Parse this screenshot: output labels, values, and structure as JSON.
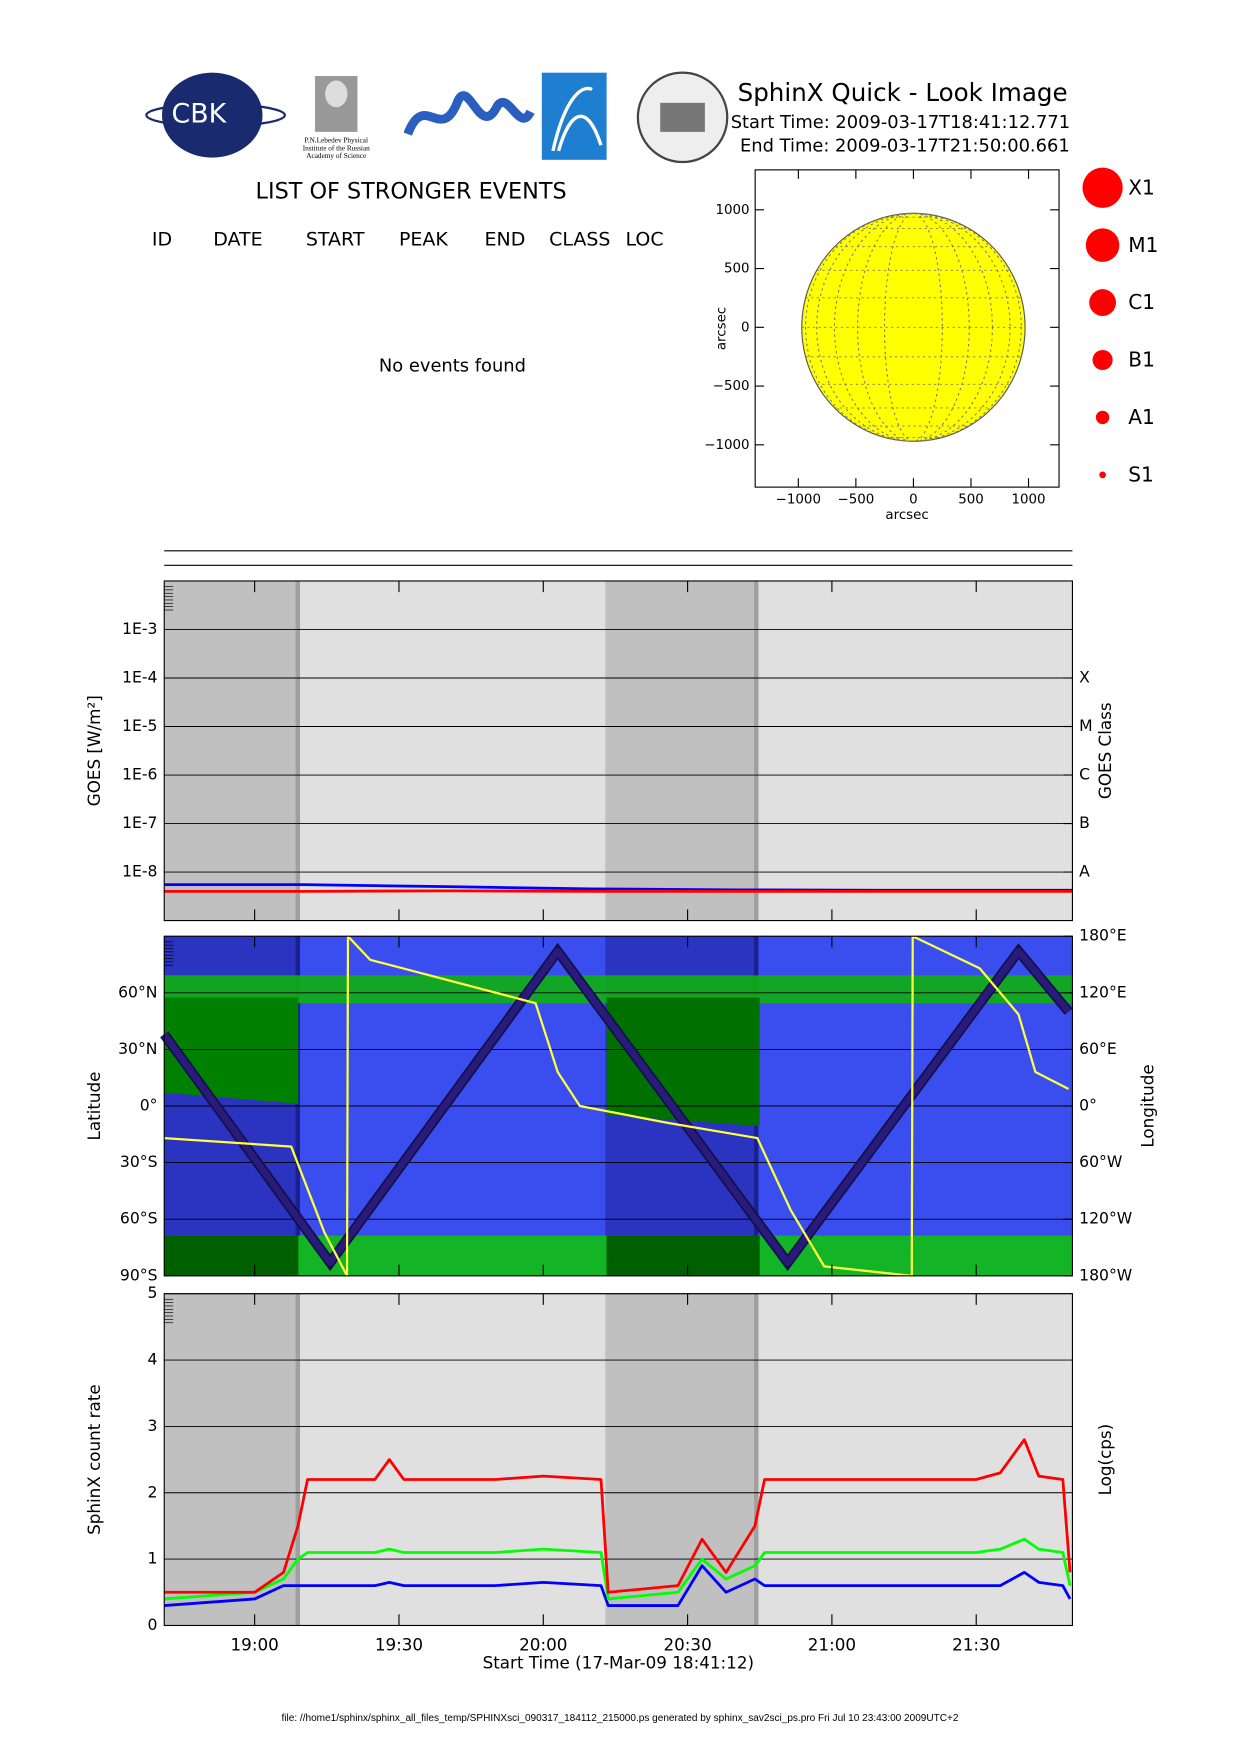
{
  "header": {
    "title": "SphinX Quick - Look Image",
    "start_time": "Start Time: 2009-03-17T18:41:12.771",
    "end_time": "End Time: 2009-03-17T21:50:00.661",
    "logo_text": "CBK",
    "logo_caption": [
      "P.N.Lebedev Physical",
      "Institute of the Russian",
      "Academy of Science"
    ]
  },
  "events": {
    "title": "LIST OF STRONGER EVENTS",
    "columns": [
      "ID",
      "DATE",
      "START",
      "PEAK",
      "END",
      "CLASS",
      "LOC"
    ],
    "message": "No events found"
  },
  "flare_legend": {
    "classes": [
      "X1",
      "M1",
      "C1",
      "B1",
      "A1",
      "S1"
    ],
    "color": "#ff0000"
  },
  "chart_data": [
    {
      "type": "disk",
      "xlabel": "arcsec",
      "ylabel": "arcsec",
      "xlim": [
        -1375,
        1265
      ],
      "ylim": [
        -1360,
        1340
      ],
      "xticks": [
        {
          "value": -1000,
          "label": "−1000"
        },
        {
          "value": -500,
          "label": "−500"
        },
        0,
        500,
        1000
      ],
      "yticks": [
        {
          "value": -1000,
          "label": "−1000"
        },
        {
          "value": -500,
          "label": "−500"
        },
        0,
        500,
        1000
      ],
      "disk_radius": 970,
      "color": "#ffff00"
    },
    {
      "type": "line",
      "ylabel": "GOES [W/m²]",
      "y2label": "GOES Class",
      "log": true,
      "grid": true,
      "xlim": [
        1121.2,
        1310
      ],
      "xticks": [
        1140,
        1170,
        1200,
        1230,
        1260,
        1290
      ],
      "ylim": [
        1e-09,
        0.01
      ],
      "yticks": [
        {
          "value": 0.001,
          "label": "1E-3"
        },
        {
          "value": 0.0001,
          "label": "1E-4"
        },
        {
          "value": 1e-05,
          "label": "1E-5"
        },
        {
          "value": 1e-06,
          "label": "1E-6"
        },
        {
          "value": 1e-07,
          "label": "1E-7"
        },
        {
          "value": 1e-08,
          "label": "1E-8"
        }
      ],
      "y2lim": [
        1e-09,
        0.01
      ],
      "y2ticks": [
        {
          "value": 0.0001,
          "label": "X"
        },
        {
          "value": 1e-05,
          "label": "M"
        },
        {
          "value": 1e-06,
          "label": "C"
        },
        {
          "value": 1e-07,
          "label": "B"
        },
        {
          "value": 1e-08,
          "label": "A"
        }
      ],
      "shaded": [
        [
          1121.2,
          1149.2
        ],
        [
          1212.9,
          1244.5
        ]
      ],
      "x": [
        1121.2,
        1150,
        1180,
        1210,
        1240,
        1270,
        1310
      ],
      "series": [
        {
          "color": "#0000ff",
          "values": [
            5.5e-09,
            5.5e-09,
            5e-09,
            4.5e-09,
            4.3e-09,
            4.2e-09,
            4.2e-09
          ]
        },
        {
          "color": "#ff0000",
          "values": [
            4e-09,
            4e-09,
            4.1e-09,
            4e-09,
            4e-09,
            4e-09,
            4e-09
          ]
        }
      ]
    },
    {
      "type": "line",
      "ylabel": "Latitude",
      "y2label": "Longitude",
      "grid": true,
      "xlim": [
        1121.2,
        1310
      ],
      "xticks": [
        1140,
        1170,
        1200,
        1230,
        1260,
        1290
      ],
      "ylim": [
        -90,
        90
      ],
      "yticks": [
        {
          "value": -90,
          "label": "90°S"
        },
        {
          "value": -60,
          "label": "60°S"
        },
        {
          "value": -30,
          "label": "30°S"
        },
        {
          "value": 0,
          "label": "0°"
        },
        {
          "value": 30,
          "label": "30°N"
        },
        {
          "value": 60,
          "label": "60°N"
        }
      ],
      "y2lim": [
        -180,
        180
      ],
      "y2ticks": [
        {
          "value": -180,
          "label": "180°W"
        },
        {
          "value": -120,
          "label": "120°W"
        },
        {
          "value": -60,
          "label": "60°W"
        },
        {
          "value": 0,
          "label": "0°"
        },
        {
          "value": 60,
          "label": "60°E"
        },
        {
          "value": 120,
          "label": "120°E"
        },
        {
          "value": 180,
          "label": "180°E"
        }
      ],
      "shaded": [
        [
          1121.2,
          1149.2
        ],
        [
          1212.9,
          1244.5
        ]
      ],
      "series": [
        {
          "color": "#2a1a7a",
          "x": [
            1121.2,
            1155.7,
            1203,
            1250.8,
            1298.8,
            1309.2
          ],
          "values": [
            38,
            -83,
            82,
            -83,
            82,
            50
          ]
        },
        {
          "color": "#ffff40",
          "axis": "y2",
          "x": [
            1121.2,
            1147.6,
            1154.5,
            1159.2,
            1159.4,
            1164,
            1198.4,
            1203,
            1207.6,
            1226,
            1244.5,
            1251.4,
            1258.4,
            1276.6,
            1276.8,
            1290.7,
            1298.8,
            1302.3,
            1309.2
          ],
          "values": [
            -34,
            -43,
            -134,
            -180,
            180,
            155,
            109,
            36,
            0,
            -18,
            -34,
            -110,
            -170,
            -180,
            180,
            146,
            97,
            36,
            18
          ]
        }
      ]
    },
    {
      "type": "line",
      "ylabel": "SphinX count rate",
      "y2label": "Log(cps)",
      "xlabel": "Start Time (17-Mar-09 18:41:12)",
      "grid": true,
      "xlim": [
        1121.2,
        1310
      ],
      "xticks": [
        {
          "value": 1140,
          "label": "19:00"
        },
        {
          "value": 1170,
          "label": "19:30"
        },
        {
          "value": 1200,
          "label": "20:00"
        },
        {
          "value": 1230,
          "label": "20:30"
        },
        {
          "value": 1260,
          "label": "21:00"
        },
        {
          "value": 1290,
          "label": "21:30"
        }
      ],
      "ylim": [
        0,
        5
      ],
      "yticks": [
        0,
        1,
        2,
        3,
        4,
        5
      ],
      "shaded": [
        [
          1121.2,
          1149.2
        ],
        [
          1212.9,
          1244.5
        ]
      ],
      "x": [
        1121.2,
        1140,
        1146,
        1149,
        1151,
        1165,
        1168,
        1171,
        1190,
        1200,
        1212,
        1213.5,
        1228,
        1233,
        1238,
        1244,
        1246,
        1290,
        1295,
        1300,
        1303,
        1308,
        1309.5
      ],
      "series": [
        {
          "color": "#0000ff",
          "values": [
            0.3,
            0.4,
            0.6,
            0.6,
            0.6,
            0.6,
            0.65,
            0.6,
            0.6,
            0.65,
            0.6,
            0.3,
            0.3,
            0.9,
            0.5,
            0.7,
            0.6,
            0.6,
            0.6,
            0.8,
            0.65,
            0.6,
            0.4
          ]
        },
        {
          "color": "#00ff00",
          "values": [
            0.4,
            0.5,
            0.7,
            1.0,
            1.1,
            1.1,
            1.15,
            1.1,
            1.1,
            1.15,
            1.1,
            0.4,
            0.5,
            1.0,
            0.7,
            0.9,
            1.1,
            1.1,
            1.15,
            1.3,
            1.15,
            1.1,
            0.6
          ]
        },
        {
          "color": "#ff0000",
          "values": [
            0.5,
            0.5,
            0.8,
            1.5,
            2.2,
            2.2,
            2.5,
            2.2,
            2.2,
            2.25,
            2.2,
            0.5,
            0.6,
            1.3,
            0.8,
            1.5,
            2.2,
            2.2,
            2.3,
            2.8,
            2.25,
            2.2,
            0.8
          ]
        }
      ]
    }
  ],
  "footer": "file: //home1/sphinx/sphinx_all_files_temp/SPHINXsci_090317_184112_215000.ps generated by sphinx_sav2sci_ps.pro Fri Jul 10 23:43:00 2009UTC+2"
}
